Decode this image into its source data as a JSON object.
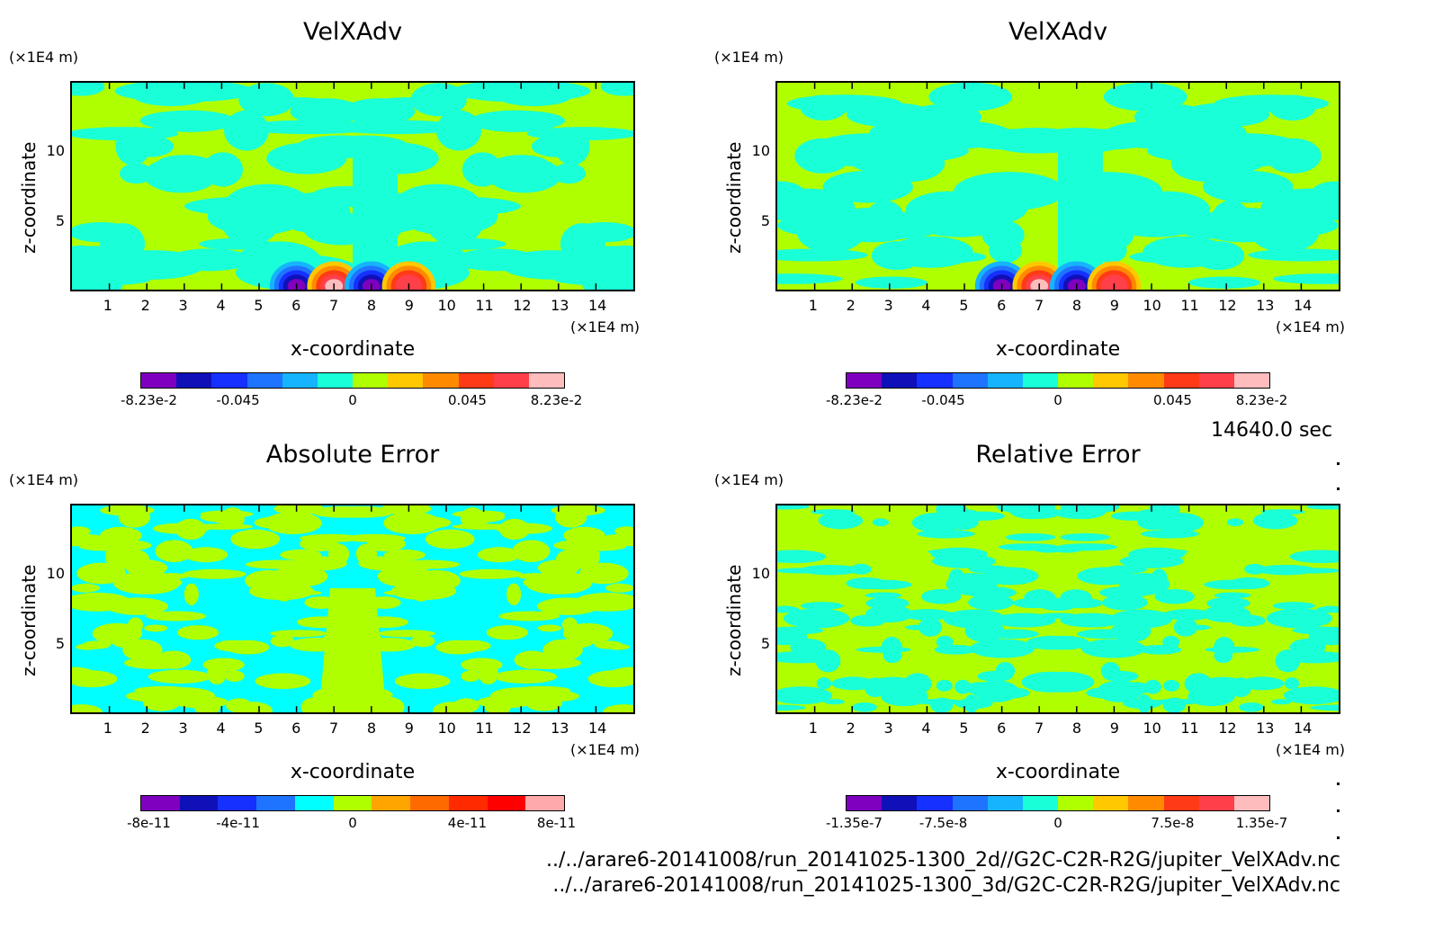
{
  "colors": {
    "rainbow11": [
      "#7f00bf",
      "#1010b8",
      "#1530ff",
      "#1f74ff",
      "#16b4ff",
      "#19ffd8",
      "#b0ff00",
      "#ffc800",
      "#ff8a00",
      "#ff3a17",
      "#ff404a",
      "#ffbcbc"
    ],
    "background_field_green": "#b0ff00",
    "background_field_cyan": "#19ffd8"
  },
  "panels": [
    {
      "title": "VelXAdv",
      "y_unit": "(×1E4 m)",
      "x_unit": "(×1E4 m)",
      "ylabel": "z-coordinate",
      "xlabel": "x-coordinate",
      "x_ticks": [
        "1",
        "2",
        "3",
        "4",
        "5",
        "6",
        "7",
        "8",
        "9",
        "10",
        "11",
        "12",
        "13",
        "14"
      ],
      "y_ticks": [
        "10",
        "5"
      ],
      "colorbar_ticks": [
        "-8.23e-2",
        "-0.045",
        "0",
        "0.045",
        "8.23e-2"
      ],
      "colorbar_colors": [
        "#7f00bf",
        "#1010b8",
        "#1530ff",
        "#1f74ff",
        "#16b4ff",
        "#19ffd8",
        "#b0ff00",
        "#ffc800",
        "#ff8a00",
        "#ff3a17",
        "#ff404a",
        "#ffbcbc"
      ]
    },
    {
      "title": "VelXAdv",
      "y_unit": "(×1E4 m)",
      "x_unit": "(×1E4 m)",
      "ylabel": "z-coordinate",
      "xlabel": "x-coordinate",
      "x_ticks": [
        "1",
        "2",
        "3",
        "4",
        "5",
        "6",
        "7",
        "8",
        "9",
        "10",
        "11",
        "12",
        "13",
        "14"
      ],
      "y_ticks": [
        "10",
        "5"
      ],
      "colorbar_ticks": [
        "-8.23e-2",
        "-0.045",
        "0",
        "0.045",
        "8.23e-2"
      ],
      "colorbar_colors": [
        "#7f00bf",
        "#1010b8",
        "#1530ff",
        "#1f74ff",
        "#16b4ff",
        "#19ffd8",
        "#b0ff00",
        "#ffc800",
        "#ff8a00",
        "#ff3a17",
        "#ff404a",
        "#ffbcbc"
      ]
    },
    {
      "title": "Absolute Error",
      "y_unit": "(×1E4 m)",
      "x_unit": "(×1E4 m)",
      "ylabel": "z-coordinate",
      "xlabel": "x-coordinate",
      "x_ticks": [
        "1",
        "2",
        "3",
        "4",
        "5",
        "6",
        "7",
        "8",
        "9",
        "10",
        "11",
        "12",
        "13",
        "14"
      ],
      "y_ticks": [
        "10",
        "5"
      ],
      "colorbar_ticks": [
        "-8e-11",
        "-4e-11",
        "0",
        "4e-11",
        "8e-11"
      ],
      "colorbar_colors": [
        "#7f00bf",
        "#1010b8",
        "#1530ff",
        "#1f74ff",
        "#00ffff",
        "#b0ff00",
        "#ffa500",
        "#ff6a00",
        "#ff2a00",
        "#ff0000",
        "#ffaaaa"
      ]
    },
    {
      "title": "Relative Error",
      "y_unit": "(×1E4 m)",
      "x_unit": "(×1E4 m)",
      "ylabel": "z-coordinate",
      "xlabel": "x-coordinate",
      "x_ticks": [
        "1",
        "2",
        "3",
        "4",
        "5",
        "6",
        "7",
        "8",
        "9",
        "10",
        "11",
        "12",
        "13",
        "14"
      ],
      "y_ticks": [
        "10",
        "5"
      ],
      "colorbar_ticks": [
        "-1.35e-7",
        "-7.5e-8",
        "0",
        "7.5e-8",
        "1.35e-7"
      ],
      "colorbar_colors": [
        "#7f00bf",
        "#1010b8",
        "#1530ff",
        "#1f74ff",
        "#16b4ff",
        "#19ffd8",
        "#b0ff00",
        "#ffc800",
        "#ff8a00",
        "#ff3a17",
        "#ff404a",
        "#ffbcbc"
      ]
    }
  ],
  "time_label": "14640.0 sec",
  "footer": [
    "../../arare6-20141008/run_20141025-1300_2d//G2C-C2R-R2G/jupiter_VelXAdv.nc",
    "../../arare6-20141008/run_20141025-1300_3d/G2C-C2R-R2G/jupiter_VelXAdv.nc"
  ],
  "chart_data": [
    {
      "type": "heatmap",
      "title": "VelXAdv",
      "xlabel": "x-coordinate",
      "ylabel": "z-coordinate",
      "xlim": [
        0,
        15
      ],
      "ylim": [
        0,
        15
      ],
      "color_range": [
        -0.0823,
        0.0823
      ],
      "colorbar_ticks": [
        "-8.23e-2",
        "-0.045",
        "0",
        "0.045",
        "8.23e-2"
      ],
      "features": [
        {
          "x": 6.0,
          "z": 0.3,
          "value": -0.0823
        },
        {
          "x": 7.0,
          "z": 0.3,
          "value": 0.0823
        },
        {
          "x": 8.0,
          "z": 0.3,
          "value": -0.0823
        },
        {
          "x": 9.0,
          "z": 0.3,
          "value": 0.06
        }
      ]
    },
    {
      "type": "heatmap",
      "title": "VelXAdv",
      "xlabel": "x-coordinate",
      "ylabel": "z-coordinate",
      "xlim": [
        0,
        15
      ],
      "ylim": [
        0,
        15
      ],
      "color_range": [
        -0.0823,
        0.0823
      ],
      "colorbar_ticks": [
        "-8.23e-2",
        "-0.045",
        "0",
        "0.045",
        "8.23e-2"
      ],
      "features": [
        {
          "x": 6.0,
          "z": 0.3,
          "value": -0.0823
        },
        {
          "x": 7.0,
          "z": 0.3,
          "value": 0.0823
        },
        {
          "x": 8.0,
          "z": 0.3,
          "value": -0.0823
        },
        {
          "x": 9.0,
          "z": 0.3,
          "value": 0.06
        }
      ]
    },
    {
      "type": "heatmap",
      "title": "Absolute Error",
      "xlabel": "x-coordinate",
      "ylabel": "z-coordinate",
      "xlim": [
        0,
        15
      ],
      "ylim": [
        0,
        15
      ],
      "color_range": [
        -8e-11,
        8e-11
      ],
      "colorbar_ticks": [
        "-8e-11",
        "-4e-11",
        "0",
        "4e-11",
        "8e-11"
      ]
    },
    {
      "type": "heatmap",
      "title": "Relative Error",
      "xlabel": "x-coordinate",
      "ylabel": "z-coordinate",
      "xlim": [
        0,
        15
      ],
      "ylim": [
        0,
        15
      ],
      "color_range": [
        -1.35e-07,
        1.35e-07
      ],
      "colorbar_ticks": [
        "-1.35e-7",
        "-7.5e-8",
        "0",
        "7.5e-8",
        "1.35e-7"
      ]
    }
  ]
}
